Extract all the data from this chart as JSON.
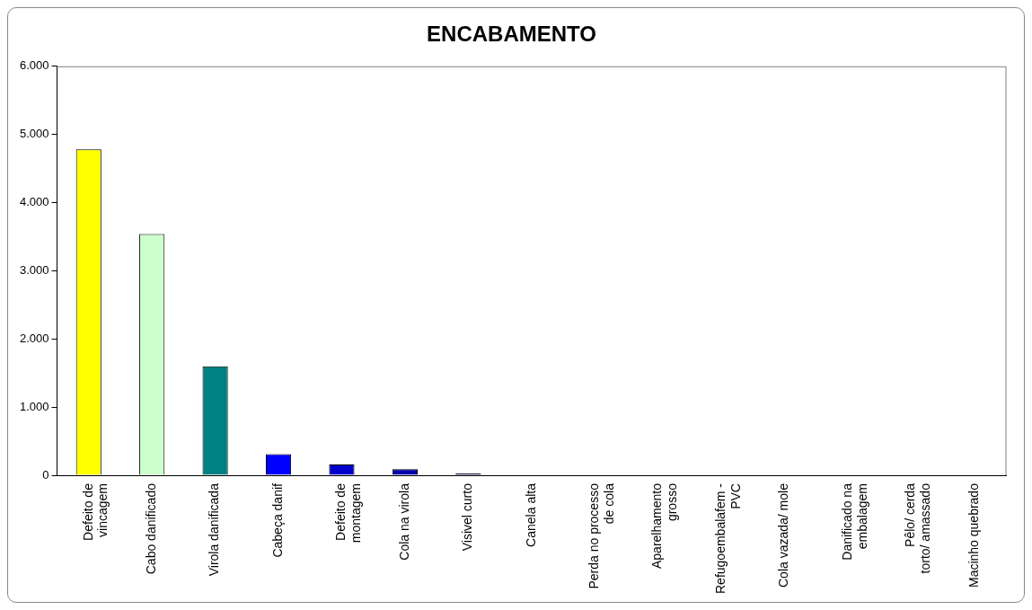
{
  "chart_data": {
    "type": "bar",
    "title": "ENCABAMENTO",
    "categories": [
      "Defeito de vincagem",
      "Cabo danificado",
      "Virola danificada",
      "Cabeça danif",
      "Defeito de montagem",
      "Cola na virola",
      "Visivel curto",
      "Canela alta",
      "Perda no processo de cola",
      "Aparelhamento grosso",
      "Refugoembalafem - PVC",
      "Cola vazada/ mole",
      "Danificado na embalagem",
      "Pêlo/ cerda torto/ amassado",
      "Macinho quebrado"
    ],
    "values": [
      4780,
      3540,
      1600,
      310,
      160,
      90,
      30,
      0,
      0,
      0,
      0,
      0,
      0,
      0,
      0
    ],
    "colors": [
      "#ffff00",
      "#ccffcc",
      "#008080",
      "#0000ff",
      "#0000cc",
      "#0000aa",
      "#000066",
      "#0000ff",
      "#0000ff",
      "#0000ff",
      "#0000ff",
      "#0000ff",
      "#0000ff",
      "#0000ff",
      "#0000ff"
    ],
    "ylim": [
      0,
      6000
    ],
    "yticks": [
      {
        "value": 0,
        "label": "0"
      },
      {
        "value": 1000,
        "label": "1.000"
      },
      {
        "value": 2000,
        "label": "2.000"
      },
      {
        "value": 3000,
        "label": "3.000"
      },
      {
        "value": 4000,
        "label": "4.000"
      },
      {
        "value": 5000,
        "label": "5.000"
      },
      {
        "value": 6000,
        "label": "6.000"
      }
    ],
    "grid": false
  }
}
